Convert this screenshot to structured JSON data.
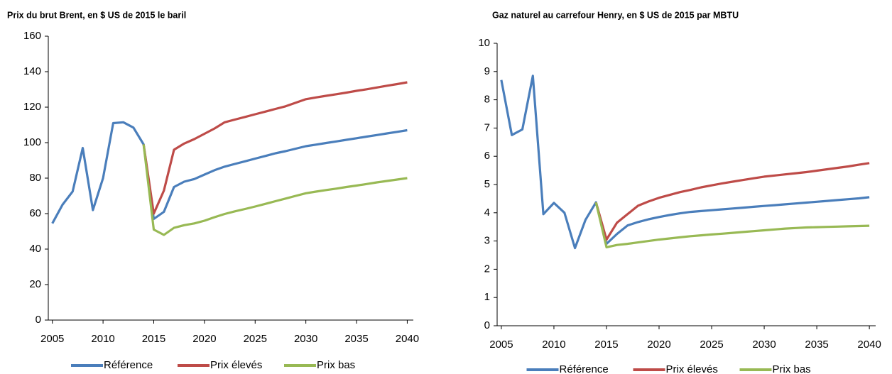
{
  "chart_data": [
    {
      "type": "line",
      "title": "Prix du brut Brent, en $ US de 2015 le baril",
      "x": [
        2005,
        2006,
        2007,
        2008,
        2009,
        2010,
        2011,
        2012,
        2013,
        2014,
        2015,
        2016,
        2017,
        2018,
        2019,
        2020,
        2021,
        2022,
        2023,
        2024,
        2025,
        2026,
        2027,
        2028,
        2029,
        2030,
        2031,
        2032,
        2033,
        2034,
        2035,
        2036,
        2037,
        2038,
        2039,
        2040
      ],
      "series": [
        {
          "name": "Référence",
          "color": "#4a7ebb",
          "values": [
            54.5,
            65,
            72.5,
            97,
            62,
            80,
            111,
            111.5,
            108.5,
            99,
            57,
            61,
            75,
            78,
            79.5,
            82,
            84.5,
            86.5,
            88,
            89.5,
            91,
            92.5,
            94,
            95.2,
            96.6,
            98,
            98.9,
            99.8,
            100.7,
            101.6,
            102.5,
            103.4,
            104.3,
            105.2,
            106.1,
            107
          ]
        },
        {
          "name": "Prix élevés",
          "color": "#be4b48",
          "values": [
            null,
            null,
            null,
            null,
            null,
            null,
            null,
            null,
            null,
            99,
            60,
            73,
            96,
            99.5,
            102,
            105,
            108,
            111.5,
            113,
            114.5,
            116,
            117.5,
            119,
            120.5,
            122.5,
            124.5,
            125.5,
            126.4,
            127.3,
            128.2,
            129.2,
            130.1,
            131.1,
            132.1,
            133,
            134
          ]
        },
        {
          "name": "Prix bas",
          "color": "#98b954",
          "values": [
            null,
            null,
            null,
            null,
            null,
            null,
            null,
            null,
            null,
            99,
            51,
            48,
            52,
            53.5,
            54.5,
            56,
            58,
            59.8,
            61.3,
            62.6,
            64,
            65.5,
            67,
            68.5,
            70,
            71.5,
            72.4,
            73.3,
            74.1,
            75,
            75.8,
            76.7,
            77.6,
            78.4,
            79.2,
            80
          ]
        }
      ],
      "xlim": [
        2004.6,
        2040.6
      ],
      "xticks": [
        2005,
        2010,
        2015,
        2020,
        2025,
        2030,
        2035,
        2040
      ],
      "ylim": [
        0,
        160
      ],
      "yticks": [
        0,
        20,
        40,
        60,
        80,
        100,
        120,
        140,
        160
      ],
      "legend": "bottom"
    },
    {
      "type": "line",
      "title": "Gaz naturel au carrefour Henry, en $ US de 2015 par MBTU",
      "x": [
        2005,
        2006,
        2007,
        2008,
        2009,
        2010,
        2011,
        2012,
        2013,
        2014,
        2015,
        2016,
        2017,
        2018,
        2019,
        2020,
        2021,
        2022,
        2023,
        2024,
        2025,
        2026,
        2027,
        2028,
        2029,
        2030,
        2031,
        2032,
        2033,
        2034,
        2035,
        2036,
        2037,
        2038,
        2039,
        2040
      ],
      "series": [
        {
          "name": "Référence",
          "color": "#4a7ebb",
          "values": [
            8.7,
            6.75,
            6.95,
            8.85,
            3.95,
            4.35,
            4.0,
            2.75,
            3.75,
            4.37,
            2.9,
            3.25,
            3.55,
            3.67,
            3.77,
            3.85,
            3.92,
            3.98,
            4.03,
            4.06,
            4.09,
            4.12,
            4.15,
            4.18,
            4.21,
            4.24,
            4.27,
            4.3,
            4.33,
            4.36,
            4.39,
            4.42,
            4.45,
            4.48,
            4.51,
            4.55
          ]
        },
        {
          "name": "Prix élevés",
          "color": "#be4b48",
          "values": [
            null,
            null,
            null,
            null,
            null,
            null,
            null,
            null,
            null,
            4.37,
            3.05,
            3.65,
            3.95,
            4.25,
            4.4,
            4.53,
            4.63,
            4.73,
            4.81,
            4.9,
            4.97,
            5.04,
            5.1,
            5.16,
            5.22,
            5.28,
            5.32,
            5.36,
            5.4,
            5.44,
            5.49,
            5.54,
            5.59,
            5.64,
            5.7,
            5.76
          ]
        },
        {
          "name": "Prix bas",
          "color": "#98b954",
          "values": [
            null,
            null,
            null,
            null,
            null,
            null,
            null,
            null,
            null,
            4.37,
            2.78,
            2.86,
            2.9,
            2.95,
            3.0,
            3.05,
            3.09,
            3.13,
            3.17,
            3.2,
            3.23,
            3.26,
            3.29,
            3.32,
            3.35,
            3.38,
            3.41,
            3.44,
            3.46,
            3.48,
            3.49,
            3.5,
            3.51,
            3.52,
            3.53,
            3.54
          ]
        }
      ],
      "xlim": [
        2004.6,
        2040.6
      ],
      "xticks": [
        2005,
        2010,
        2015,
        2020,
        2025,
        2030,
        2035,
        2040
      ],
      "ylim": [
        0,
        10
      ],
      "yticks": [
        0,
        1,
        2,
        3,
        4,
        5,
        6,
        7,
        8,
        9,
        10
      ],
      "legend": "bottom"
    }
  ]
}
